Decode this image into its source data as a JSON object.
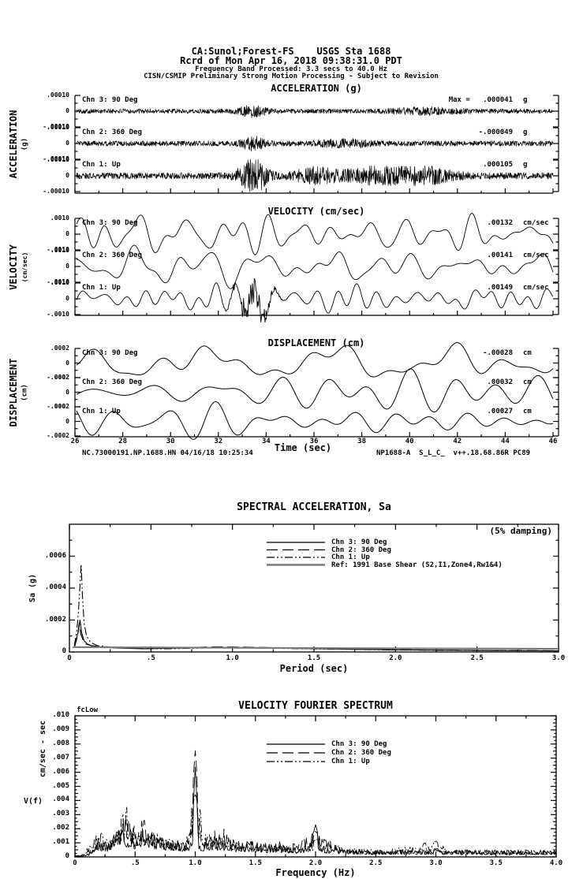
{
  "page": {
    "background": "#ffffff",
    "ink": "#000000",
    "ref_line_color": "#7a7a7a"
  },
  "header": {
    "station_line": "CA:Sunol;Forest-FS    USGS Sta 1688",
    "record_line": "Rcrd of Mon Apr 16, 2018 09:38:31.0 PDT",
    "band_line": "Frequency Band Processed: 3.3 secs to 40.0 Hz",
    "notice_line": "CISN/CSMIP Preliminary Strong Motion Processing - Subject to Revision"
  },
  "footer": {
    "left": "NC.73000191.NP.1688.HN 04/16/18 10:25:34",
    "right": "NP1688-A  S_L_C_  v++.18.68.86R PC89"
  },
  "time_axis": {
    "label": "Time (sec)",
    "ticks": [
      "26",
      "28",
      "30",
      "32",
      "34",
      "36",
      "38",
      "40",
      "42",
      "44",
      "46"
    ],
    "range": [
      26,
      46
    ]
  },
  "chart_data": [
    {
      "id": "acceleration",
      "type": "line",
      "title": "ACCELERATION (g)",
      "ylabel": "ACCELERATION",
      "yunits": "(g)",
      "full_scale": 0.0001,
      "y_ticks": [
        ".00010",
        "0",
        "-.00010"
      ],
      "x_range": [
        26,
        46
      ],
      "series": [
        {
          "name": "Chn 3: 90 Deg",
          "peak_prefix": "Max =   ",
          "peak_label": ".000041",
          "units": "g",
          "peak_value": 4.1e-05,
          "render": {
            "seed": 101,
            "kind": "accel",
            "base": 0.5,
            "bursts": [
              [
                0.37,
                0.02,
                1.0
              ],
              [
                0.73,
                0.05,
                0.5
              ]
            ]
          }
        },
        {
          "name": "Chn 2: 360 Deg",
          "peak_prefix": "",
          "peak_label": "-.000049",
          "units": "g",
          "peak_value": -4.9e-05,
          "render": {
            "seed": 102,
            "kind": "accel",
            "base": 0.45,
            "bursts": [
              [
                0.37,
                0.016,
                1.0
              ],
              [
                0.56,
                0.04,
                0.5
              ]
            ]
          }
        },
        {
          "name": "Chn 1: Up",
          "peak_prefix": "",
          "peak_label": ".000105",
          "units": "g",
          "peak_value": 0.000105,
          "render": {
            "seed": 103,
            "kind": "accel",
            "base": 0.2,
            "bursts": [
              [
                0.37,
                0.02,
                1.0
              ],
              [
                0.5,
                0.03,
                0.4
              ],
              [
                0.63,
                0.05,
                0.45
              ],
              [
                0.74,
                0.04,
                0.4
              ]
            ]
          }
        }
      ]
    },
    {
      "id": "velocity",
      "type": "line",
      "title": "VELOCITY (cm/sec)",
      "ylabel": "VELOCITY",
      "yunits": "(cm/sec)",
      "full_scale": 0.001,
      "y_ticks": [
        ".0010",
        "0",
        "-.0010"
      ],
      "x_range": [
        26,
        46
      ],
      "series": [
        {
          "name": "Chn 3: 90 Deg",
          "peak_prefix": "",
          "peak_label": ".00132",
          "units": "cm/sec",
          "peak_value": 0.00132,
          "render": {
            "seed": 201,
            "kind": "vel",
            "comps": 14,
            "fmin": 5,
            "fmax": 26
          }
        },
        {
          "name": "Chn 2: 360 Deg",
          "peak_prefix": "",
          "peak_label": ".00141",
          "units": "cm/sec",
          "peak_value": 0.00141,
          "render": {
            "seed": 202,
            "kind": "vel",
            "comps": 14,
            "fmin": 5,
            "fmax": 24
          }
        },
        {
          "name": "Chn 1: Up",
          "peak_prefix": "",
          "peak_label": ".00149",
          "units": "cm/sec",
          "peak_value": 0.00149,
          "render": {
            "seed": 203,
            "kind": "vel",
            "comps": 14,
            "fmin": 6,
            "fmax": 28,
            "hf": [
              0.37,
              0.025,
              0.9
            ]
          }
        }
      ]
    },
    {
      "id": "displacement",
      "type": "line",
      "title": "DISPLACEMENT (cm)",
      "ylabel": "DISPLACEMENT",
      "yunits": "(cm)",
      "full_scale": 0.0002,
      "y_ticks": [
        ".0002",
        "0",
        "-.0002"
      ],
      "x_range": [
        26,
        46
      ],
      "series": [
        {
          "name": "Chn 3: 90 Deg",
          "peak_prefix": "",
          "peak_label": "-.00028",
          "units": "cm",
          "peak_value": -0.00028,
          "render": {
            "seed": 301,
            "kind": "disp",
            "comps": 7,
            "fmin": 3.5,
            "fmax": 13
          }
        },
        {
          "name": "Chn 2: 360 Deg",
          "peak_prefix": "",
          "peak_label": ".00032",
          "units": "cm",
          "peak_value": 0.00032,
          "render": {
            "seed": 302,
            "kind": "disp",
            "comps": 7,
            "fmin": 3.5,
            "fmax": 13
          }
        },
        {
          "name": "Chn 1: Up",
          "peak_prefix": "",
          "peak_label": ".00027",
          "units": "cm",
          "peak_value": 0.00027,
          "render": {
            "seed": 303,
            "kind": "disp",
            "comps": 7,
            "fmin": 4,
            "fmax": 14
          }
        }
      ]
    },
    {
      "id": "spectral_acceleration",
      "type": "line",
      "title": "SPECTRAL ACCELERATION, Sa",
      "annotation": "(5% damping)",
      "xlabel": "Period (sec)",
      "ylabel": "Sa (g)",
      "xlim": [
        0,
        3.0
      ],
      "ylim": [
        0,
        0.0008
      ],
      "x_ticks": [
        "0",
        ".5",
        "1.0",
        "1.5",
        "2.0",
        "2.5",
        "3.0"
      ],
      "y_ticks": [
        "0",
        ".0002",
        ".0004",
        ".0006"
      ],
      "legend_position": "top-center",
      "grid": false,
      "series": [
        {
          "name": "Chn 3: 90 Deg",
          "style": "solid",
          "points": [
            [
              0.03,
              3e-05
            ],
            [
              0.045,
              9e-05
            ],
            [
              0.055,
              0.00013
            ],
            [
              0.065,
              0.0002
            ],
            [
              0.075,
              0.00012
            ],
            [
              0.09,
              7e-05
            ],
            [
              0.11,
              5e-05
            ],
            [
              0.14,
              3.8e-05
            ],
            [
              0.2,
              3e-05
            ],
            [
              0.3,
              2.4e-05
            ],
            [
              0.45,
              2e-05
            ],
            [
              0.6,
              2.2e-05
            ],
            [
              0.8,
              2.6e-05
            ],
            [
              1.0,
              2.8e-05
            ],
            [
              1.2,
              2.6e-05
            ],
            [
              1.5,
              2e-05
            ],
            [
              1.8,
              1.6e-05
            ],
            [
              2.2,
              1.2e-05
            ],
            [
              2.6,
              9e-06
            ],
            [
              3.0,
              7e-06
            ]
          ]
        },
        {
          "name": "Chn 2: 360 Deg",
          "style": "long-dash",
          "points": [
            [
              0.03,
              2.5e-05
            ],
            [
              0.05,
              0.0001
            ],
            [
              0.06,
              0.00018
            ],
            [
              0.07,
              0.00011
            ],
            [
              0.085,
              7e-05
            ],
            [
              0.1,
              5e-05
            ],
            [
              0.13,
              4e-05
            ],
            [
              0.2,
              3.2e-05
            ],
            [
              0.3,
              2.6e-05
            ],
            [
              0.5,
              2.2e-05
            ],
            [
              0.7,
              2.8e-05
            ],
            [
              0.9,
              3.2e-05
            ],
            [
              1.1,
              3e-05
            ],
            [
              1.4,
              2.4e-05
            ],
            [
              1.7,
              1.8e-05
            ],
            [
              2.0,
              1.4e-05
            ],
            [
              2.5,
              1e-05
            ],
            [
              3.0,
              8e-06
            ]
          ]
        },
        {
          "name": "Chn 1: Up",
          "style": "dash-dot-dot",
          "points": [
            [
              0.03,
              4e-05
            ],
            [
              0.045,
              0.00013
            ],
            [
              0.055,
              0.00025
            ],
            [
              0.065,
              0.00042
            ],
            [
              0.072,
              0.00055
            ],
            [
              0.08,
              0.00035
            ],
            [
              0.09,
              0.00018
            ],
            [
              0.105,
              0.0001
            ],
            [
              0.13,
              6e-05
            ],
            [
              0.17,
              4e-05
            ],
            [
              0.25,
              3e-05
            ],
            [
              0.4,
              2.2e-05
            ],
            [
              0.6,
              2e-05
            ],
            [
              0.8,
              2.4e-05
            ],
            [
              1.0,
              2.6e-05
            ],
            [
              1.3,
              2.2e-05
            ],
            [
              1.6,
              1.8e-05
            ],
            [
              2.0,
              1.3e-05
            ],
            [
              2.5,
              9e-06
            ],
            [
              3.0,
              7e-06
            ]
          ]
        },
        {
          "name": "Ref: 1991 Base Shear (S2,I1,Zone4,Rw1&4)",
          "style": "ref-solid",
          "points": [
            [
              0.02,
              3e-05
            ],
            [
              0.5,
              2.8e-05
            ],
            [
              1.0,
              2.6e-05
            ],
            [
              1.5,
              2.4e-05
            ],
            [
              2.0,
              2.2e-05
            ],
            [
              3.0,
              2e-05
            ]
          ]
        }
      ]
    },
    {
      "id": "velocity_fourier_spectrum",
      "type": "line",
      "title": "VELOCITY FOURIER SPECTRUM",
      "corner_label": "fcLow",
      "xlabel": "Frequency (Hz)",
      "ylabel": "V(f)",
      "ylabel_units": "cm/sec - sec",
      "xlim": [
        0,
        4.0
      ],
      "ylim": [
        0,
        0.01
      ],
      "x_ticks": [
        "0",
        ".5",
        "1.0",
        "1.5",
        "2.0",
        "2.5",
        "3.0",
        "3.5",
        "4.0"
      ],
      "y_ticks": [
        "0",
        ".001",
        ".002",
        ".003",
        ".004",
        ".005",
        ".006",
        ".007",
        ".008",
        ".009",
        ".010"
      ],
      "spike_frequencies": [
        1.0,
        2.0,
        3.0
      ],
      "legend_position": "top-center",
      "grid": false,
      "series": [
        {
          "name": "Chn 3: 90 Deg",
          "style": "solid",
          "render": {
            "seed": 401
          },
          "envelope": [
            [
              0.05,
              0.0001
            ],
            [
              0.12,
              0.0003
            ],
            [
              0.2,
              0.0016
            ],
            [
              0.25,
              0.0011
            ],
            [
              0.3,
              0.0013
            ],
            [
              0.35,
              0.0019
            ],
            [
              0.42,
              0.0021
            ],
            [
              0.5,
              0.0016
            ],
            [
              0.55,
              0.0028
            ],
            [
              0.62,
              0.0019
            ],
            [
              0.7,
              0.0015
            ],
            [
              0.8,
              0.0013
            ],
            [
              0.9,
              0.0011
            ],
            [
              0.97,
              0.0012
            ],
            [
              1.0,
              0.0067
            ],
            [
              1.03,
              0.0013
            ],
            [
              1.1,
              0.001
            ],
            [
              1.2,
              0.0014
            ],
            [
              1.3,
              0.001
            ],
            [
              1.45,
              0.0012
            ],
            [
              1.6,
              0.0009
            ],
            [
              1.7,
              0.0011
            ],
            [
              1.8,
              0.0008
            ],
            [
              1.95,
              0.0008
            ],
            [
              2.0,
              0.0024
            ],
            [
              2.05,
              0.0008
            ],
            [
              2.2,
              0.0006
            ],
            [
              2.5,
              0.0005
            ],
            [
              2.8,
              0.0005
            ],
            [
              3.0,
              0.0006
            ],
            [
              3.3,
              0.0005
            ],
            [
              3.6,
              0.0005
            ],
            [
              4.0,
              0.0005
            ]
          ]
        },
        {
          "name": "Chn 2: 360 Deg",
          "style": "long-dash",
          "render": {
            "seed": 402
          },
          "envelope": [
            [
              0.05,
              0.0001
            ],
            [
              0.15,
              0.0008
            ],
            [
              0.22,
              0.0012
            ],
            [
              0.3,
              0.0011
            ],
            [
              0.38,
              0.0028
            ],
            [
              0.45,
              0.0037
            ],
            [
              0.5,
              0.0021
            ],
            [
              0.58,
              0.0033
            ],
            [
              0.65,
              0.0017
            ],
            [
              0.75,
              0.0013
            ],
            [
              0.85,
              0.0011
            ],
            [
              0.95,
              0.0013
            ],
            [
              1.0,
              0.0081
            ],
            [
              1.05,
              0.0015
            ],
            [
              1.15,
              0.0019
            ],
            [
              1.25,
              0.0021
            ],
            [
              1.35,
              0.0012
            ],
            [
              1.5,
              0.001
            ],
            [
              1.65,
              0.0009
            ],
            [
              1.8,
              0.0009
            ],
            [
              2.0,
              0.0019
            ],
            [
              2.2,
              0.0007
            ],
            [
              2.5,
              0.0005
            ],
            [
              3.0,
              0.0005
            ],
            [
              3.5,
              0.0004
            ],
            [
              4.0,
              0.0005
            ]
          ]
        },
        {
          "name": "Chn 1: Up",
          "style": "dash-dot-dot",
          "render": {
            "seed": 403
          },
          "envelope": [
            [
              0.05,
              0.0001
            ],
            [
              0.15,
              0.0012
            ],
            [
              0.2,
              0.002
            ],
            [
              0.28,
              0.0014
            ],
            [
              0.35,
              0.0022
            ],
            [
              0.43,
              0.0037
            ],
            [
              0.5,
              0.0018
            ],
            [
              0.6,
              0.0024
            ],
            [
              0.7,
              0.0016
            ],
            [
              0.8,
              0.0012
            ],
            [
              0.9,
              0.001
            ],
            [
              1.0,
              0.0048
            ],
            [
              1.1,
              0.0012
            ],
            [
              1.2,
              0.0016
            ],
            [
              1.35,
              0.001
            ],
            [
              1.5,
              0.0013
            ],
            [
              1.7,
              0.0009
            ],
            [
              1.85,
              0.0007
            ],
            [
              2.0,
              0.0013
            ],
            [
              2.3,
              0.0006
            ],
            [
              2.6,
              0.0005
            ],
            [
              3.0,
              0.0012
            ],
            [
              3.1,
              0.0005
            ],
            [
              3.5,
              0.0005
            ],
            [
              4.0,
              0.0005
            ]
          ]
        }
      ]
    }
  ]
}
